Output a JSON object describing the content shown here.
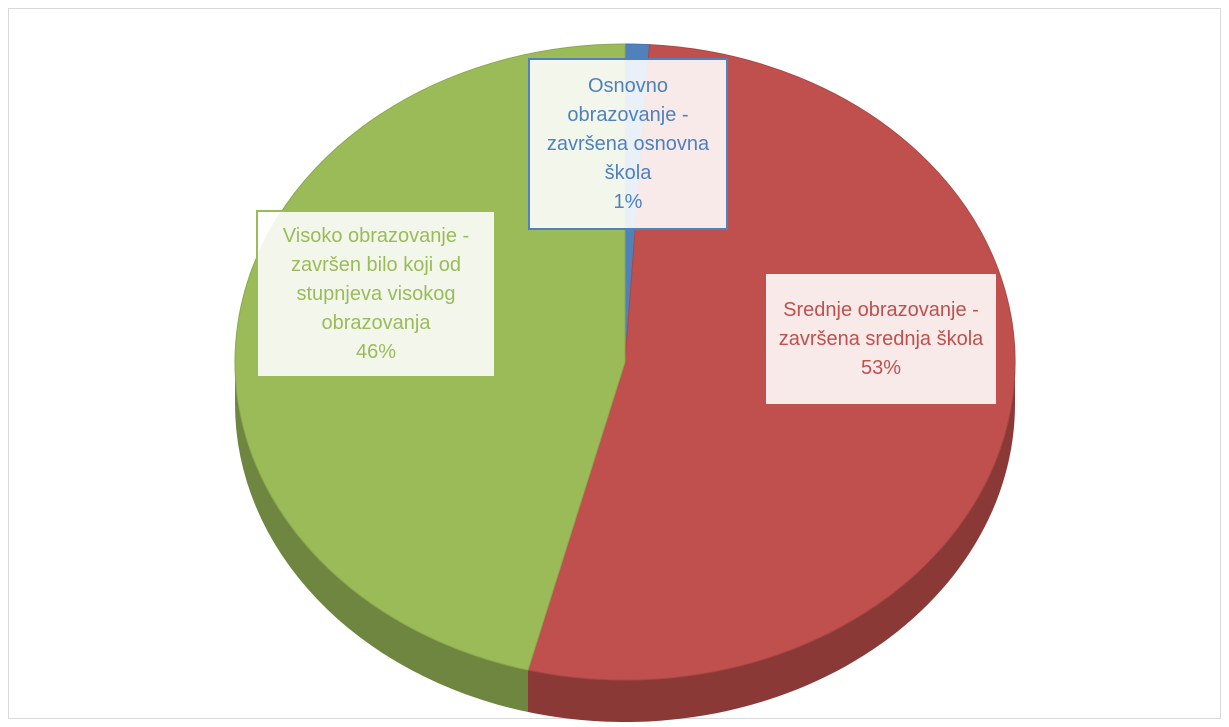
{
  "chart_data": {
    "type": "pie",
    "categories": [
      "Osnovno obrazovanje - završena osnovna škola",
      "Srednje obrazovanje - završena srednja škola",
      "Visoko obrazovanje - završen bilo koji od stupnjeva visokog obrazovanja"
    ],
    "values": [
      1,
      53,
      46
    ],
    "value_labels": [
      "1%",
      "53%",
      "46%"
    ],
    "colors": [
      "#4f81bd",
      "#c0504d",
      "#9bbb59"
    ]
  }
}
